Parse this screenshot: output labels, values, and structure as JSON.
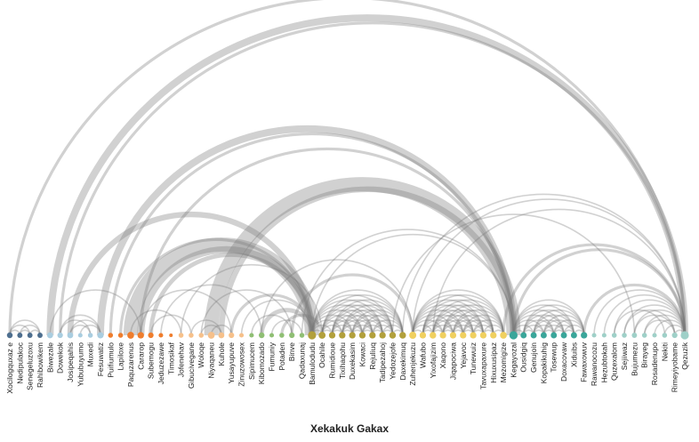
{
  "title": "Xekakuk Gakax",
  "group_colors": {
    "g0": "#4e6f8f",
    "g1": "#a9cde0",
    "g2": "#ef7d2d",
    "g3": "#f6c08a",
    "g4": "#8fbf74",
    "g5": "#b2a03c",
    "g6": "#f0d060",
    "g7": "#3aa69a",
    "g8": "#9fd0c8"
  },
  "nodes": [
    {
      "name": "Xocilogquxaz e",
      "group": "g0"
    },
    {
      "name": "Nedipulakoc",
      "group": "g0"
    },
    {
      "name": "Senegeluzoxu",
      "group": "g0"
    },
    {
      "name": "Rahibowikem",
      "group": "g0"
    },
    {
      "name": "Biwezale",
      "group": "g1"
    },
    {
      "name": "Dowekok",
      "group": "g1"
    },
    {
      "name": "Josipeqahis",
      "group": "g1"
    },
    {
      "name": "Yububuyumo",
      "group": "g1"
    },
    {
      "name": "Muxedi",
      "group": "g1"
    },
    {
      "name": "Fesuwatiz",
      "group": "g1"
    },
    {
      "name": "Puifiumulo",
      "group": "g2"
    },
    {
      "name": "Lapiloxe",
      "group": "g2"
    },
    {
      "name": "Paquzarenus",
      "group": "g2"
    },
    {
      "name": "Cararop",
      "group": "g2"
    },
    {
      "name": "Subemogu",
      "group": "g2"
    },
    {
      "name": "Jeduzezawe",
      "group": "g2"
    },
    {
      "name": "Timosikaf",
      "group": "g2"
    },
    {
      "name": "Jofenehav",
      "group": "g3"
    },
    {
      "name": "Gibucivegane",
      "group": "g3"
    },
    {
      "name": "Woloqe",
      "group": "g3"
    },
    {
      "name": "Niyaqaneu",
      "group": "g3"
    },
    {
      "name": "Kuhole",
      "group": "g3"
    },
    {
      "name": "Yusayupuve",
      "group": "g3"
    },
    {
      "name": "Zinuzowosex",
      "group": "g3"
    },
    {
      "name": "Sipimucem",
      "group": "g4"
    },
    {
      "name": "Kibomozado",
      "group": "g4"
    },
    {
      "name": "Fumuniy",
      "group": "g4"
    },
    {
      "name": "Potaden",
      "group": "g4"
    },
    {
      "name": "Binve",
      "group": "g4"
    },
    {
      "name": "Qadaxunaj",
      "group": "g4"
    },
    {
      "name": "Bamulodudu",
      "group": "g5"
    },
    {
      "name": "Ocahile",
      "group": "g5"
    },
    {
      "name": "Rumidioue",
      "group": "g5"
    },
    {
      "name": "Tixihaqohu",
      "group": "g5"
    },
    {
      "name": "Duxekasim",
      "group": "g5"
    },
    {
      "name": "Kowaci",
      "group": "g5"
    },
    {
      "name": "Rejuliuq",
      "group": "g5"
    },
    {
      "name": "Tadipezahoj",
      "group": "g5"
    },
    {
      "name": "Yedozejofe",
      "group": "g5"
    },
    {
      "name": "Daxekimuq",
      "group": "g5"
    },
    {
      "name": "Zuhenjekuzu",
      "group": "g6"
    },
    {
      "name": "Wafubo",
      "group": "g6"
    },
    {
      "name": "Yixofajizim",
      "group": "g6"
    },
    {
      "name": "Xaqono",
      "group": "g6"
    },
    {
      "name": "Jiqapociwa",
      "group": "g6"
    },
    {
      "name": "Yejavoc",
      "group": "g6"
    },
    {
      "name": "Tunewuiz",
      "group": "g6"
    },
    {
      "name": "Tavuxapaxure",
      "group": "g6"
    },
    {
      "name": "Hixuxusipaz",
      "group": "g6"
    },
    {
      "name": "Mezomigize",
      "group": "g6"
    },
    {
      "name": "Kegayozal",
      "group": "g7"
    },
    {
      "name": "Ousidgiq",
      "group": "g7"
    },
    {
      "name": "Genujoin",
      "group": "g7"
    },
    {
      "name": "Kopakikuhig",
      "group": "g7"
    },
    {
      "name": "Tosewup",
      "group": "g7"
    },
    {
      "name": "Doxacovaw",
      "group": "g7"
    },
    {
      "name": "Xiduibs",
      "group": "g7"
    },
    {
      "name": "Fawaxowuv",
      "group": "g7"
    },
    {
      "name": "Rawanocozu",
      "group": "g8"
    },
    {
      "name": "Hezubtokah",
      "group": "g8"
    },
    {
      "name": "Quzexalom",
      "group": "g8"
    },
    {
      "name": "Sejiiwaz",
      "group": "g8"
    },
    {
      "name": "Bujumezu",
      "group": "g8"
    },
    {
      "name": "Birayeg",
      "group": "g8"
    },
    {
      "name": "Rosadenupo",
      "group": "g8"
    },
    {
      "name": "Nekiti",
      "group": "g8"
    },
    {
      "name": "Rimeyiyobame",
      "group": "g8"
    },
    {
      "name": "Qezuzik",
      "group": "g8"
    }
  ],
  "links": [
    [
      0,
      67,
      2
    ],
    [
      0,
      1,
      1
    ],
    [
      0,
      2,
      1
    ],
    [
      1,
      2,
      1
    ],
    [
      1,
      3,
      1
    ],
    [
      2,
      3,
      1
    ],
    [
      0,
      3,
      1
    ],
    [
      4,
      67,
      5
    ],
    [
      5,
      67,
      2
    ],
    [
      6,
      30,
      4
    ],
    [
      4,
      13,
      1
    ],
    [
      5,
      9,
      1
    ],
    [
      6,
      8,
      1
    ],
    [
      7,
      9,
      1
    ],
    [
      5,
      8,
      1
    ],
    [
      6,
      9,
      1
    ],
    [
      9,
      50,
      5
    ],
    [
      10,
      50,
      2
    ],
    [
      13,
      50,
      2
    ],
    [
      12,
      30,
      10
    ],
    [
      13,
      30,
      5
    ],
    [
      11,
      30,
      2
    ],
    [
      14,
      30,
      3
    ],
    [
      15,
      25,
      1
    ],
    [
      13,
      22,
      1
    ],
    [
      12,
      17,
      1
    ],
    [
      14,
      18,
      1
    ],
    [
      20,
      50,
      10
    ],
    [
      21,
      50,
      4
    ],
    [
      22,
      30,
      2
    ],
    [
      19,
      28,
      1
    ],
    [
      20,
      22,
      1
    ],
    [
      19,
      21,
      1
    ],
    [
      18,
      21,
      1
    ],
    [
      23,
      30,
      1
    ],
    [
      17,
      31,
      1
    ],
    [
      28,
      40,
      2
    ],
    [
      25,
      30,
      3
    ],
    [
      27,
      31,
      2
    ],
    [
      24,
      28,
      1
    ],
    [
      26,
      29,
      1
    ],
    [
      25,
      40,
      1
    ],
    [
      29,
      50,
      1
    ],
    [
      30,
      31,
      1
    ],
    [
      30,
      32,
      1
    ],
    [
      30,
      33,
      1
    ],
    [
      30,
      34,
      1
    ],
    [
      30,
      35,
      1
    ],
    [
      30,
      36,
      1
    ],
    [
      30,
      37,
      1
    ],
    [
      30,
      38,
      1
    ],
    [
      30,
      39,
      1
    ],
    [
      31,
      32,
      1
    ],
    [
      31,
      33,
      1
    ],
    [
      31,
      34,
      1
    ],
    [
      31,
      35,
      1
    ],
    [
      31,
      36,
      1
    ],
    [
      31,
      37,
      1
    ],
    [
      31,
      38,
      1
    ],
    [
      31,
      39,
      1
    ],
    [
      32,
      33,
      1
    ],
    [
      32,
      34,
      1
    ],
    [
      32,
      35,
      1
    ],
    [
      32,
      36,
      1
    ],
    [
      32,
      37,
      1
    ],
    [
      32,
      38,
      1
    ],
    [
      32,
      39,
      1
    ],
    [
      33,
      34,
      1
    ],
    [
      33,
      35,
      1
    ],
    [
      33,
      36,
      1
    ],
    [
      33,
      37,
      1
    ],
    [
      33,
      38,
      1
    ],
    [
      33,
      39,
      1
    ],
    [
      34,
      35,
      1
    ],
    [
      34,
      36,
      1
    ],
    [
      34,
      37,
      1
    ],
    [
      34,
      38,
      1
    ],
    [
      34,
      39,
      1
    ],
    [
      35,
      36,
      1
    ],
    [
      35,
      37,
      1
    ],
    [
      35,
      38,
      1
    ],
    [
      35,
      39,
      1
    ],
    [
      36,
      37,
      1
    ],
    [
      36,
      38,
      1
    ],
    [
      36,
      39,
      1
    ],
    [
      37,
      38,
      1
    ],
    [
      37,
      39,
      1
    ],
    [
      38,
      39,
      1
    ],
    [
      40,
      41,
      1
    ],
    [
      40,
      42,
      1
    ],
    [
      40,
      43,
      1
    ],
    [
      40,
      44,
      1
    ],
    [
      40,
      45,
      1
    ],
    [
      40,
      46,
      1
    ],
    [
      40,
      47,
      1
    ],
    [
      40,
      48,
      1
    ],
    [
      40,
      49,
      1
    ],
    [
      41,
      42,
      1
    ],
    [
      41,
      43,
      1
    ],
    [
      41,
      44,
      1
    ],
    [
      41,
      45,
      1
    ],
    [
      41,
      46,
      1
    ],
    [
      41,
      47,
      1
    ],
    [
      41,
      48,
      1
    ],
    [
      41,
      49,
      1
    ],
    [
      42,
      43,
      1
    ],
    [
      42,
      44,
      1
    ],
    [
      42,
      45,
      1
    ],
    [
      42,
      46,
      1
    ],
    [
      42,
      47,
      1
    ],
    [
      42,
      48,
      1
    ],
    [
      42,
      49,
      1
    ],
    [
      43,
      44,
      1
    ],
    [
      43,
      45,
      1
    ],
    [
      43,
      46,
      1
    ],
    [
      43,
      47,
      1
    ],
    [
      43,
      48,
      1
    ],
    [
      43,
      49,
      1
    ],
    [
      44,
      45,
      1
    ],
    [
      44,
      46,
      1
    ],
    [
      44,
      47,
      1
    ],
    [
      44,
      48,
      1
    ],
    [
      44,
      49,
      1
    ],
    [
      45,
      46,
      1
    ],
    [
      45,
      47,
      1
    ],
    [
      45,
      48,
      1
    ],
    [
      45,
      49,
      1
    ],
    [
      46,
      47,
      1
    ],
    [
      46,
      48,
      1
    ],
    [
      46,
      49,
      1
    ],
    [
      47,
      48,
      1
    ],
    [
      47,
      49,
      1
    ],
    [
      48,
      49,
      1
    ],
    [
      50,
      51,
      1
    ],
    [
      50,
      52,
      1
    ],
    [
      50,
      53,
      1
    ],
    [
      50,
      54,
      1
    ],
    [
      50,
      55,
      1
    ],
    [
      50,
      56,
      1
    ],
    [
      50,
      57,
      1
    ],
    [
      51,
      52,
      1
    ],
    [
      51,
      53,
      1
    ],
    [
      51,
      54,
      1
    ],
    [
      51,
      55,
      1
    ],
    [
      51,
      56,
      1
    ],
    [
      51,
      57,
      1
    ],
    [
      52,
      53,
      1
    ],
    [
      52,
      54,
      1
    ],
    [
      52,
      55,
      1
    ],
    [
      52,
      56,
      1
    ],
    [
      52,
      57,
      1
    ],
    [
      53,
      54,
      1
    ],
    [
      53,
      55,
      1
    ],
    [
      53,
      56,
      1
    ],
    [
      53,
      57,
      1
    ],
    [
      54,
      55,
      1
    ],
    [
      54,
      56,
      1
    ],
    [
      54,
      57,
      1
    ],
    [
      55,
      56,
      1
    ],
    [
      55,
      57,
      1
    ],
    [
      56,
      57,
      1
    ],
    [
      39,
      67,
      1
    ],
    [
      42,
      67,
      1
    ],
    [
      30,
      50,
      1
    ],
    [
      40,
      67,
      1
    ],
    [
      38,
      62,
      1
    ],
    [
      50,
      67,
      2
    ],
    [
      57,
      67,
      2
    ],
    [
      49,
      67,
      2
    ],
    [
      58,
      67,
      1
    ],
    [
      59,
      67,
      1
    ],
    [
      60,
      67,
      1
    ],
    [
      61,
      67,
      1
    ],
    [
      62,
      67,
      1
    ],
    [
      63,
      67,
      1
    ],
    [
      64,
      67,
      1
    ],
    [
      65,
      67,
      1
    ],
    [
      66,
      67,
      1
    ],
    [
      60,
      65,
      1
    ],
    [
      61,
      66,
      1
    ],
    [
      62,
      66,
      1
    ],
    [
      63,
      66,
      1
    ]
  ]
}
